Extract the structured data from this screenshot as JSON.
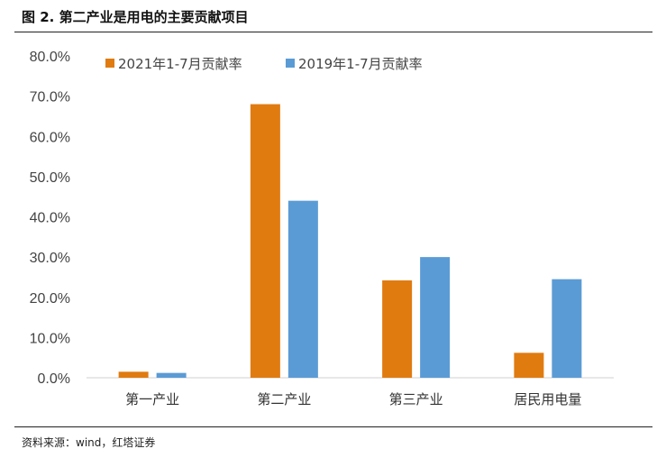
{
  "figure": {
    "title": "图 2. 第二产业是用电的主要贡献项目",
    "source": "资料来源：wind，红塔证券"
  },
  "chart_data": {
    "type": "bar",
    "title": "",
    "xlabel": "",
    "ylabel": "",
    "categories": [
      "第一产业",
      "第二产业",
      "第三产业",
      "居民用电量"
    ],
    "series": [
      {
        "name": "2021年1-7月贡献率",
        "color": "#E07B10",
        "values": [
          1.5,
          68.0,
          24.2,
          6.2
        ]
      },
      {
        "name": "2019年1-7月贡献率",
        "color": "#5B9BD5",
        "values": [
          1.2,
          44.0,
          30.0,
          24.5
        ]
      }
    ],
    "ylim": [
      0,
      80
    ],
    "yticks": [
      "0.0%",
      "10.0%",
      "20.0%",
      "30.0%",
      "40.0%",
      "50.0%",
      "60.0%",
      "70.0%",
      "80.0%"
    ],
    "grid": false,
    "legend": "top-left"
  }
}
